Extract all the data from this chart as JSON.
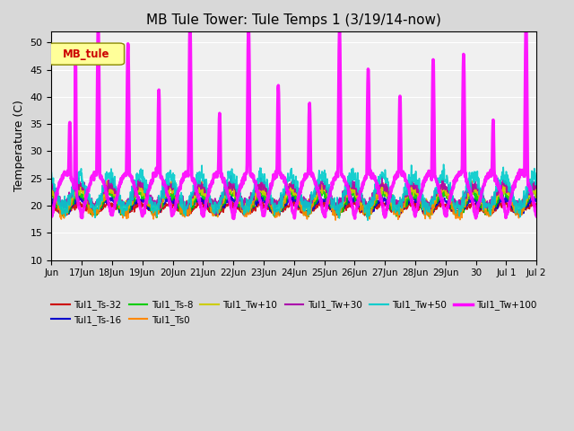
{
  "title": "MB Tule Tower: Tule Temps 1 (3/19/14-now)",
  "ylabel": "Temperature (C)",
  "ylim": [
    10,
    52
  ],
  "yticks": [
    10,
    15,
    20,
    25,
    30,
    35,
    40,
    45,
    50
  ],
  "bg_color": "#d8d8d8",
  "plot_bg_color": "#f0f0f0",
  "legend_label": "MB_tule",
  "series": [
    {
      "name": "Tul1_Ts-32",
      "color": "#cc0000",
      "lw": 1.2
    },
    {
      "name": "Tul1_Ts-16",
      "color": "#0000cc",
      "lw": 1.2
    },
    {
      "name": "Tul1_Ts-8",
      "color": "#00cc00",
      "lw": 1.2
    },
    {
      "name": "Tul1_Ts0",
      "color": "#ff8800",
      "lw": 1.2
    },
    {
      "name": "Tul1_Tw+10",
      "color": "#cccc00",
      "lw": 1.2
    },
    {
      "name": "Tul1_Tw+30",
      "color": "#aa00aa",
      "lw": 1.2
    },
    {
      "name": "Tul1_Tw+50",
      "color": "#00cccc",
      "lw": 1.2
    },
    {
      "name": "Tul1_Tw+100",
      "color": "#ff00ff",
      "lw": 2.5
    }
  ],
  "n_days": 16,
  "xtick_positions": [
    0,
    1,
    2,
    3,
    4,
    5,
    6,
    7,
    8,
    9,
    10,
    11,
    12,
    13,
    14,
    15,
    16
  ],
  "xtick_labels": [
    "Jun",
    "17Jun",
    "18Jun",
    "19Jun",
    "20Jun",
    "21Jun",
    "22Jun",
    "23Jun",
    "24Jun",
    "25Jun",
    "26Jun",
    "27Jun",
    "28Jun",
    "29Jun",
    "30",
    "Jul 1",
    "Jul 2"
  ],
  "title_fontsize": 11,
  "axis_fontsize": 9,
  "tick_fontsize": 8
}
